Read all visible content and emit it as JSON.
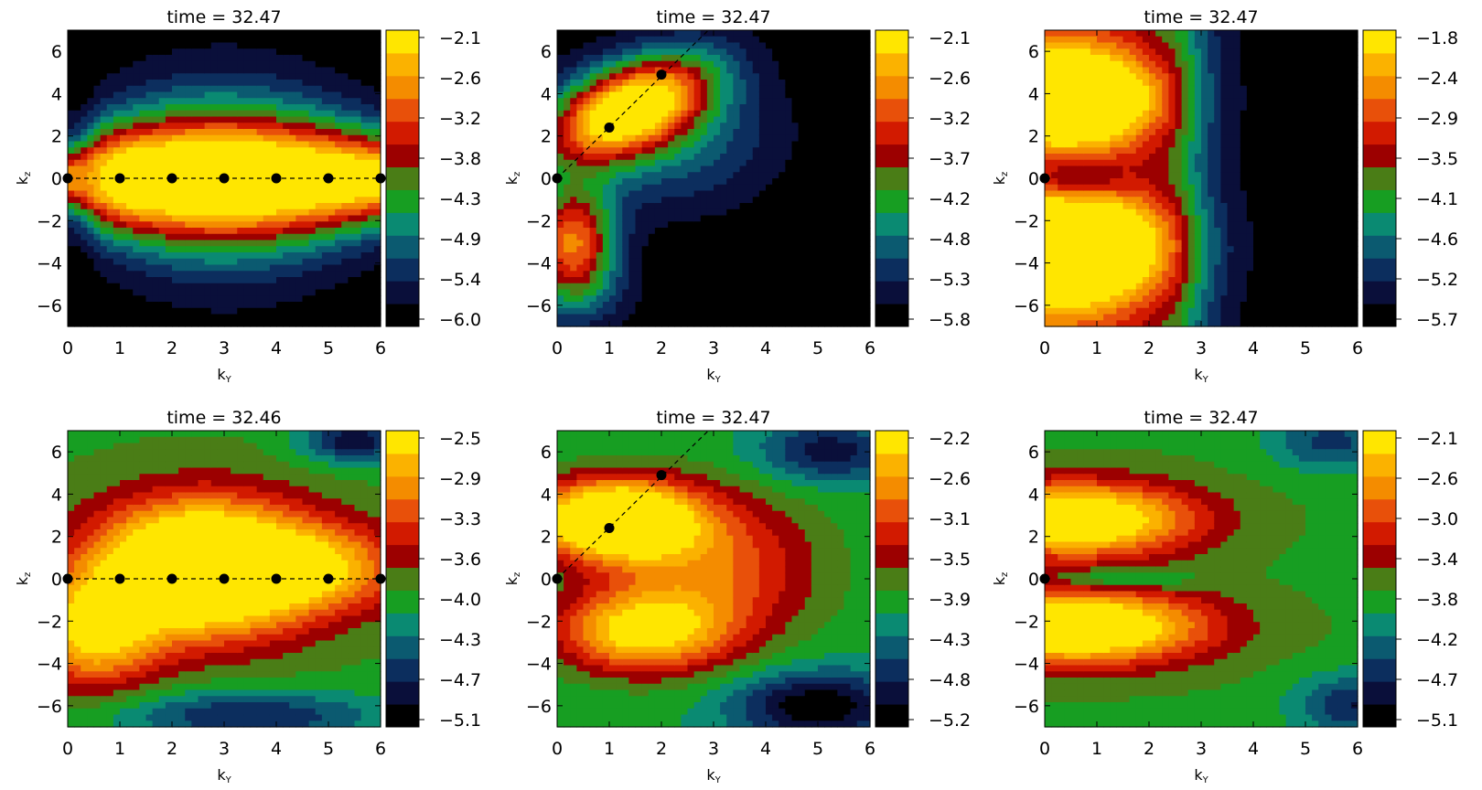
{
  "colormap": [
    "#000000",
    "#0a0f3a",
    "#0c2e5e",
    "#0b5a70",
    "#0a8a72",
    "#179e22",
    "#4a7d16",
    "#9c0000",
    "#d21a00",
    "#e8500a",
    "#f48c00",
    "#fbb200",
    "#ffe600"
  ],
  "chart_data": [
    {
      "type": "heatmap",
      "title": "time  =  32.47",
      "xlabel": "k_Y",
      "ylabel": "k_z",
      "xlim": [
        0,
        6
      ],
      "ylim": [
        -7,
        7
      ],
      "xticks": [
        "0",
        "1",
        "2",
        "3",
        "4",
        "5",
        "6"
      ],
      "yticks": [
        "−6",
        "−4",
        "−2",
        "0",
        "2",
        "4",
        "6"
      ],
      "colorbar": [
        "−2.1",
        "−2.6",
        "−3.2",
        "−3.8",
        "−4.3",
        "−4.9",
        "−5.4",
        "−6.0"
      ],
      "pattern": "horizontal",
      "markers": [
        [
          0,
          0
        ],
        [
          1,
          0
        ],
        [
          2,
          0
        ],
        [
          3,
          0
        ],
        [
          4,
          0
        ],
        [
          5,
          0
        ],
        [
          6,
          0
        ]
      ],
      "line": {
        "from": [
          0,
          0
        ],
        "to": [
          6,
          0
        ]
      }
    },
    {
      "type": "heatmap",
      "title": "time  =  32.47",
      "xlabel": "k_Y",
      "ylabel": "k_z",
      "xlim": [
        0,
        6
      ],
      "ylim": [
        -7,
        7
      ],
      "xticks": [
        "0",
        "1",
        "2",
        "3",
        "4",
        "5",
        "6"
      ],
      "yticks": [
        "−6",
        "−4",
        "−2",
        "0",
        "2",
        "4",
        "6"
      ],
      "colorbar": [
        "−2.1",
        "−2.6",
        "−3.2",
        "−3.7",
        "−4.2",
        "−4.8",
        "−5.3",
        "−5.8"
      ],
      "pattern": "diagonal",
      "markers": [
        [
          0,
          0
        ],
        [
          1,
          2.4
        ],
        [
          2,
          4.9
        ]
      ],
      "line": {
        "from": [
          0,
          0
        ],
        "to": [
          2.9,
          7
        ]
      }
    },
    {
      "type": "heatmap",
      "title": "time  =  32.47",
      "xlabel": "k_Y",
      "ylabel": "k_z",
      "xlim": [
        0,
        6
      ],
      "ylim": [
        -7,
        7
      ],
      "xticks": [
        "0",
        "1",
        "2",
        "3",
        "4",
        "5",
        "6"
      ],
      "yticks": [
        "−6",
        "−4",
        "−2",
        "0",
        "2",
        "4",
        "6"
      ],
      "colorbar": [
        "−1.8",
        "−2.4",
        "−2.9",
        "−3.5",
        "−4.1",
        "−4.6",
        "−5.2",
        "−5.7"
      ],
      "pattern": "twolobe",
      "markers": [
        [
          0,
          0
        ]
      ],
      "line": null
    },
    {
      "type": "heatmap",
      "title": "time  =  32.46",
      "xlabel": "k_Y",
      "ylabel": "k_z",
      "xlim": [
        0,
        6
      ],
      "ylim": [
        -7,
        7
      ],
      "xticks": [
        "0",
        "1",
        "2",
        "3",
        "4",
        "5",
        "6"
      ],
      "yticks": [
        "−6",
        "−4",
        "−2",
        "0",
        "2",
        "4",
        "6"
      ],
      "colorbar": [
        "−2.5",
        "−2.9",
        "−3.3",
        "−3.6",
        "−4.0",
        "−4.3",
        "−4.7",
        "−5.1"
      ],
      "pattern": "blob",
      "markers": [
        [
          0,
          0
        ],
        [
          1,
          0
        ],
        [
          2,
          0
        ],
        [
          3,
          0
        ],
        [
          4,
          0
        ],
        [
          5,
          0
        ],
        [
          6,
          0
        ]
      ],
      "line": {
        "from": [
          0,
          0
        ],
        "to": [
          6,
          0
        ]
      }
    },
    {
      "type": "heatmap",
      "title": "time  =  32.47",
      "xlabel": "k_Y",
      "ylabel": "k_z",
      "xlim": [
        0,
        6
      ],
      "ylim": [
        -7,
        7
      ],
      "xticks": [
        "0",
        "1",
        "2",
        "3",
        "4",
        "5",
        "6"
      ],
      "yticks": [
        "−6",
        "−4",
        "−2",
        "0",
        "2",
        "4",
        "6"
      ],
      "colorbar": [
        "−2.2",
        "−2.6",
        "−3.1",
        "−3.5",
        "−3.9",
        "−4.3",
        "−4.8",
        "−5.2"
      ],
      "pattern": "diag2",
      "markers": [
        [
          0,
          0
        ],
        [
          1,
          2.4
        ],
        [
          2,
          4.9
        ]
      ],
      "line": {
        "from": [
          0,
          0
        ],
        "to": [
          2.9,
          7
        ]
      }
    },
    {
      "type": "heatmap",
      "title": "time  =  32.47",
      "xlabel": "k_Y",
      "ylabel": "k_z",
      "xlim": [
        0,
        6
      ],
      "ylim": [
        -7,
        7
      ],
      "xticks": [
        "0",
        "1",
        "2",
        "3",
        "4",
        "5",
        "6"
      ],
      "yticks": [
        "−6",
        "−4",
        "−2",
        "0",
        "2",
        "4",
        "6"
      ],
      "colorbar": [
        "−2.1",
        "−2.6",
        "−3.0",
        "−3.4",
        "−3.8",
        "−4.2",
        "−4.7",
        "−5.1"
      ],
      "pattern": "twolobe2",
      "markers": [
        [
          0,
          0
        ]
      ],
      "line": null
    }
  ]
}
